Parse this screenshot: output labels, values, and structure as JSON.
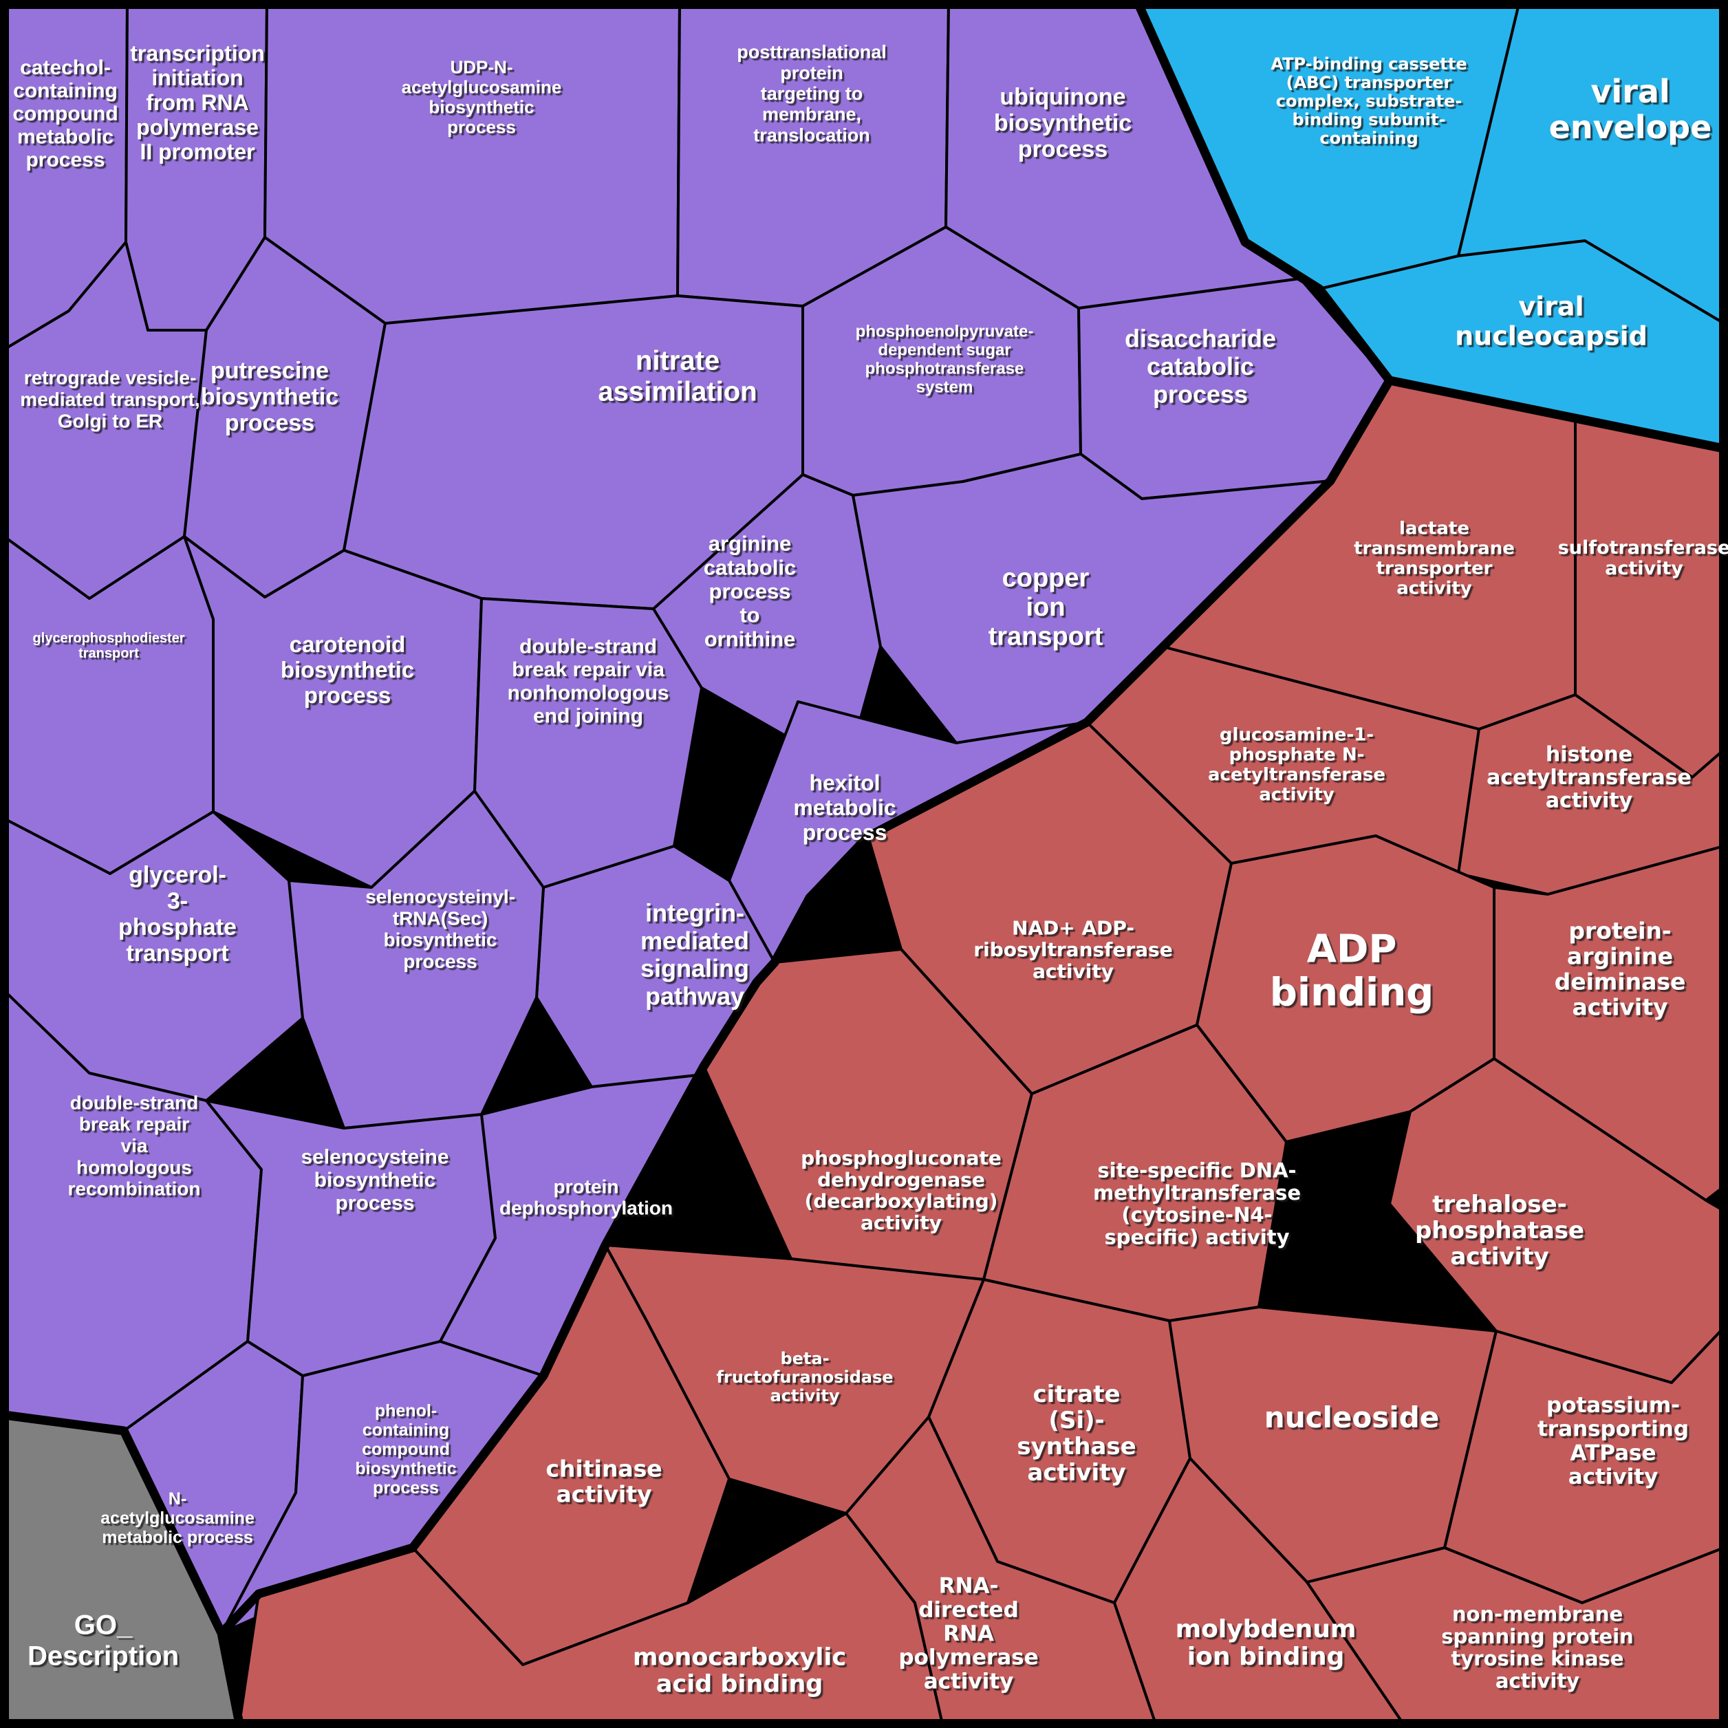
{
  "figure": {
    "kind": "GO term Voronoi treemap",
    "legend_label": "GO_Description",
    "border_color": "#000000",
    "text_color": "#ffffff"
  },
  "chart_data": {
    "type": "voronoi-treemap",
    "legend_label": "GO_Description",
    "groups": [
      {
        "id": "purple",
        "color": "#9673DB",
        "cells": [
          {
            "id": "catechol",
            "label": "catechol-containing compound metabolic process",
            "lines": [
              "catechol-",
              "containing",
              "compound",
              "metabolic",
              "process"
            ]
          },
          {
            "id": "transcription",
            "label": "transcription initiation from RNA polymerase II promoter",
            "lines": [
              "transcription",
              "initiation",
              "from RNA",
              "polymerase",
              "II promoter"
            ]
          },
          {
            "id": "udp",
            "label": "UDP-N-acetylglucosamine biosynthetic process",
            "lines": [
              "UDP-N-",
              "acetylglucosamine",
              "biosynthetic",
              "process"
            ]
          },
          {
            "id": "posttranslational",
            "label": "posttranslational protein targeting to membrane, translocation",
            "lines": [
              "posttranslational",
              "protein",
              "targeting to",
              "membrane,",
              "translocation"
            ]
          },
          {
            "id": "ubiquinone",
            "label": "ubiquinone biosynthetic process",
            "lines": [
              "ubiquinone",
              "biosynthetic",
              "process"
            ]
          },
          {
            "id": "retrograde",
            "label": "retrograde vesicle-mediated transport, Golgi to ER",
            "lines": [
              "retrograde vesicle-",
              "mediated transport,",
              "Golgi to ER"
            ]
          },
          {
            "id": "putrescine",
            "label": "putrescine biosynthetic process",
            "lines": [
              "putrescine",
              "biosynthetic",
              "process"
            ]
          },
          {
            "id": "nitrate",
            "label": "nitrate assimilation",
            "lines": [
              "nitrate",
              "assimilation"
            ]
          },
          {
            "id": "pep",
            "label": "phosphoenolpyruvate-dependent sugar phosphotransferase system",
            "lines": [
              "phosphoenolpyruvate-",
              "dependent sugar",
              "phosphotransferase",
              "system"
            ]
          },
          {
            "id": "disaccharide",
            "label": "disaccharide catabolic process",
            "lines": [
              "disaccharide",
              "catabolic",
              "process"
            ]
          },
          {
            "id": "glycerophosphodiester",
            "label": "glycerophosphodiester transport",
            "lines": [
              "glycerophosphodiester",
              "transport"
            ]
          },
          {
            "id": "carotenoid",
            "label": "carotenoid biosynthetic process",
            "lines": [
              "carotenoid",
              "biosynthetic",
              "process"
            ]
          },
          {
            "id": "dsnhej",
            "label": "double-strand break repair via nonhomologous end joining",
            "lines": [
              "double-strand",
              "break repair via",
              "nonhomologous",
              "end joining"
            ]
          },
          {
            "id": "arginine",
            "label": "arginine catabolic process to ornithine",
            "lines": [
              "arginine",
              "catabolic",
              "process",
              "to",
              "ornithine"
            ]
          },
          {
            "id": "copper",
            "label": "copper ion transport",
            "lines": [
              "copper",
              "ion",
              "transport"
            ]
          },
          {
            "id": "hexitol",
            "label": "hexitol metabolic process",
            "lines": [
              "hexitol",
              "metabolic",
              "process"
            ]
          },
          {
            "id": "integrin",
            "label": "integrin-mediated signaling pathway",
            "lines": [
              "integrin-",
              "mediated",
              "signaling",
              "pathway"
            ]
          },
          {
            "id": "glycerol3p",
            "label": "glycerol-3-phosphate transport",
            "lines": [
              "glycerol-",
              "3-",
              "phosphate",
              "transport"
            ]
          },
          {
            "id": "seltrna",
            "label": "selenocysteinyl-tRNA(Sec) biosynthetic process",
            "lines": [
              "selenocysteinyl-",
              "tRNA(Sec)",
              "biosynthetic",
              "process"
            ]
          },
          {
            "id": "dshr",
            "label": "double-strand break repair via homologous recombination",
            "lines": [
              "double-strand",
              "break repair",
              "via",
              "homologous",
              "recombination"
            ]
          },
          {
            "id": "selenocysteine",
            "label": "selenocysteine biosynthetic process",
            "lines": [
              "selenocysteine",
              "biosynthetic",
              "process"
            ]
          },
          {
            "id": "protdeph",
            "label": "protein dephosphorylation",
            "lines": [
              "protein",
              "dephosphorylation"
            ]
          },
          {
            "id": "nacetyl",
            "label": "N-acetylglucosamine metabolic process",
            "lines": [
              "N-",
              "acetylglucosamine",
              "metabolic process"
            ]
          },
          {
            "id": "phenol",
            "label": "phenol-containing compound biosynthetic process",
            "lines": [
              "phenol-",
              "containing",
              "compound",
              "biosynthetic",
              "process"
            ]
          }
        ]
      },
      {
        "id": "blue",
        "color": "#27B4EC",
        "cells": [
          {
            "id": "abc",
            "label": "ATP-binding cassette (ABC) transporter complex, substrate-binding subunit-containing",
            "lines": [
              "ATP-binding cassette",
              "(ABC) transporter",
              "complex, substrate-",
              "binding subunit-",
              "containing"
            ]
          },
          {
            "id": "envelope",
            "label": "viral envelope",
            "lines": [
              "viral",
              "envelope"
            ]
          },
          {
            "id": "nucleocapsid",
            "label": "viral nucleocapsid",
            "lines": [
              "viral",
              "nucleocapsid"
            ]
          }
        ]
      },
      {
        "id": "red",
        "color": "#C35B5B",
        "cells": [
          {
            "id": "lactate",
            "label": "lactate transmembrane transporter activity",
            "lines": [
              "lactate",
              "transmembrane",
              "transporter",
              "activity"
            ]
          },
          {
            "id": "sulfo",
            "label": "sulfotransferase activity",
            "lines": [
              "sulfotransferase",
              "activity"
            ]
          },
          {
            "id": "glucosamine",
            "label": "glucosamine-1-phosphate N-acetyltransferase activity",
            "lines": [
              "glucosamine-1-",
              "phosphate N-",
              "acetyltransferase",
              "activity"
            ]
          },
          {
            "id": "histone",
            "label": "histone acetyltransferase activity",
            "lines": [
              "histone",
              "acetyltransferase",
              "activity"
            ]
          },
          {
            "id": "nad",
            "label": "NAD+ ADP-ribosyltransferase activity",
            "lines": [
              "NAD+ ADP-",
              "ribosyltransferase",
              "activity"
            ]
          },
          {
            "id": "adp",
            "label": "ADP binding",
            "lines": [
              "ADP",
              "binding"
            ]
          },
          {
            "id": "parg",
            "label": "protein-arginine deiminase activity",
            "lines": [
              "protein-",
              "arginine",
              "deiminase",
              "activity"
            ]
          },
          {
            "id": "trehalose",
            "label": "trehalose-phosphatase activity",
            "lines": [
              "trehalose-",
              "phosphatase",
              "activity"
            ]
          },
          {
            "id": "phosphogluconate",
            "label": "phosphogluconate dehydrogenase (decarboxylating) activity",
            "lines": [
              "phosphogluconate",
              "dehydrogenase",
              "(decarboxylating)",
              "activity"
            ]
          },
          {
            "id": "sitespec",
            "label": "site-specific DNA-methyltransferase (cytosine-N4-specific) activity",
            "lines": [
              "site-specific DNA-",
              "methyltransferase",
              "(cytosine-N4-",
              "specific) activity"
            ]
          },
          {
            "id": "betafructo",
            "label": "beta-fructofuranosidase activity",
            "lines": [
              "beta-",
              "fructofuranosidase",
              "activity"
            ]
          },
          {
            "id": "citrate",
            "label": "citrate (Si)-synthase activity",
            "lines": [
              "citrate",
              "(Si)-",
              "synthase",
              "activity"
            ]
          },
          {
            "id": "nucleoside",
            "label": "nucleoside",
            "lines": [
              "nucleoside"
            ]
          },
          {
            "id": "potassium",
            "label": "potassium-transporting ATPase activity",
            "lines": [
              "potassium-",
              "transporting",
              "ATPase",
              "activity"
            ]
          },
          {
            "id": "chitinase",
            "label": "chitinase activity",
            "lines": [
              "chitinase",
              "activity"
            ]
          },
          {
            "id": "monocarb",
            "label": "monocarboxylic acid binding",
            "lines": [
              "monocarboxylic",
              "acid binding"
            ]
          },
          {
            "id": "rna",
            "label": "RNA-directed RNA polymerase activity",
            "lines": [
              "RNA-",
              "directed",
              "RNA",
              "polymerase",
              "activity"
            ]
          },
          {
            "id": "molybdenum",
            "label": "molybdenum ion binding",
            "lines": [
              "molybdenum",
              "ion binding"
            ]
          },
          {
            "id": "nonmembrane",
            "label": "non-membrane spanning protein tyrosine kinase activity",
            "lines": [
              "non-membrane",
              "spanning protein",
              "tyrosine kinase",
              "activity"
            ]
          }
        ]
      },
      {
        "id": "gray",
        "color": "#808080",
        "cells": [
          {
            "id": "legend",
            "label": "GO_Description",
            "lines": [
              "GO_",
              "Description"
            ]
          }
        ]
      }
    ]
  }
}
